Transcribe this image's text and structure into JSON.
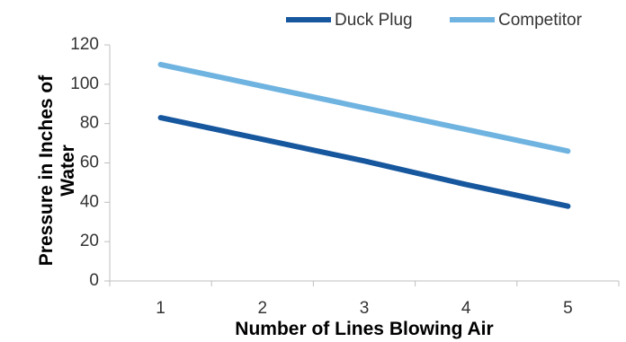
{
  "chart_data": {
    "type": "line",
    "title": "",
    "xlabel": "Number of Lines Blowing Air",
    "ylabel": "Pressure in Inches of Water",
    "categories": [
      "1",
      "2",
      "3",
      "4",
      "5"
    ],
    "ylim": [
      0,
      120
    ],
    "yticks": [
      "0",
      "20",
      "40",
      "60",
      "80",
      "100",
      "120"
    ],
    "legend_position": "top-right",
    "grid": false,
    "series": [
      {
        "name": "Duck Plug",
        "color": "#17579e",
        "values": [
          83,
          72,
          61,
          49,
          38
        ]
      },
      {
        "name": "Competitor",
        "color": "#6fb3e0",
        "values": [
          110,
          99,
          88,
          77,
          66
        ]
      }
    ]
  }
}
